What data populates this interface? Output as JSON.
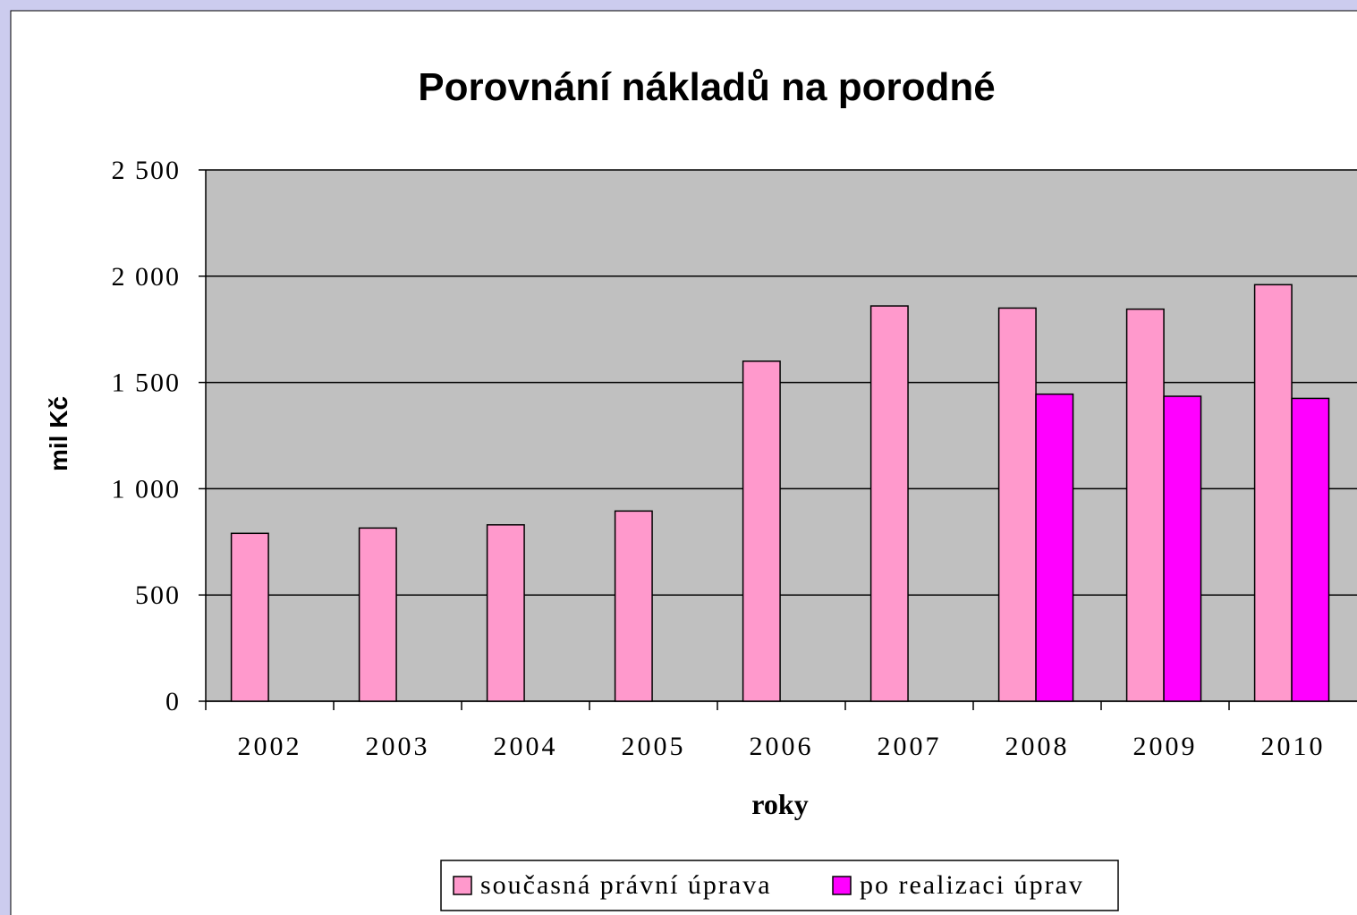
{
  "chart_data": {
    "type": "bar",
    "title": "Porovnání nákladů na porodné",
    "y_label": "mil Kč",
    "x_label": "roky",
    "categories": [
      "2002",
      "2003",
      "2004",
      "2005",
      "2006",
      "2007",
      "2008",
      "2009",
      "2010"
    ],
    "series": [
      {
        "name": "současná právní úprava",
        "color": "#ff99cc",
        "values": [
          790,
          815,
          830,
          895,
          1600,
          1860,
          1850,
          1845,
          1960
        ]
      },
      {
        "name": "po realizaci úprav",
        "color": "#ff00ff",
        "values": [
          null,
          null,
          null,
          null,
          null,
          null,
          1445,
          1435,
          1425
        ]
      }
    ],
    "ylim": [
      0,
      2500
    ],
    "yticks": [
      0,
      500,
      {
        "value": 1000,
        "label": "1 000"
      },
      {
        "value": 1500,
        "label": "1 500"
      },
      {
        "value": 2000,
        "label": "2 000"
      },
      {
        "value": 2500,
        "label": "2 500"
      }
    ],
    "grid": true,
    "legend": "bottom"
  }
}
